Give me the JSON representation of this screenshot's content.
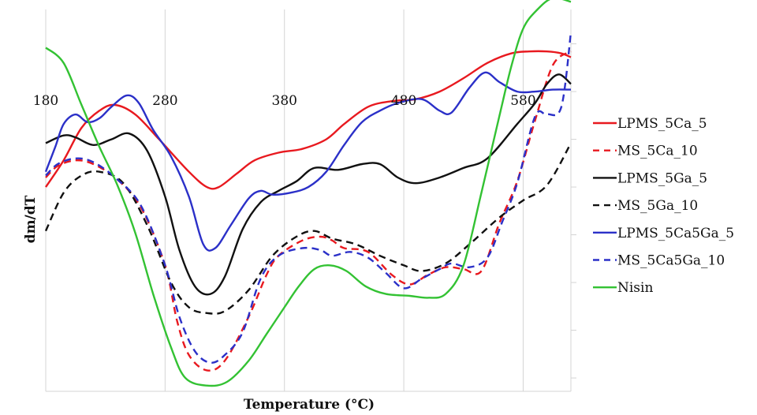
{
  "chart_data": {
    "type": "line",
    "title": "",
    "xlabel": "Temperature (°C)",
    "ylabel": "dm/dT",
    "xlim": [
      180,
      620
    ],
    "ylim": [
      0,
      10
    ],
    "x_ticks": [
      "180",
      "280",
      "380",
      "480",
      "580"
    ],
    "x_tick_values": [
      180,
      280,
      380,
      480,
      580
    ],
    "grid": "vertical",
    "legend_position": "right",
    "series": [
      {
        "name": "LPMS_5Ca_5",
        "color": "#e8191f",
        "dash": "solid",
        "points": [
          [
            180,
            5.35
          ],
          [
            195,
            6.05
          ],
          [
            210,
            6.9
          ],
          [
            225,
            7.35
          ],
          [
            238,
            7.5
          ],
          [
            255,
            7.25
          ],
          [
            275,
            6.6
          ],
          [
            300,
            5.75
          ],
          [
            315,
            5.35
          ],
          [
            325,
            5.35
          ],
          [
            340,
            5.7
          ],
          [
            355,
            6.05
          ],
          [
            375,
            6.25
          ],
          [
            395,
            6.35
          ],
          [
            415,
            6.6
          ],
          [
            430,
            7.0
          ],
          [
            450,
            7.45
          ],
          [
            470,
            7.6
          ],
          [
            490,
            7.65
          ],
          [
            510,
            7.85
          ],
          [
            530,
            8.2
          ],
          [
            550,
            8.6
          ],
          [
            570,
            8.85
          ],
          [
            585,
            8.9
          ],
          [
            600,
            8.9
          ],
          [
            612,
            8.85
          ],
          [
            620,
            8.75
          ]
        ]
      },
      {
        "name": "MS_5Ca_10",
        "color": "#e8191f",
        "dash": "dashed",
        "points": [
          [
            180,
            5.6
          ],
          [
            190,
            5.9
          ],
          [
            205,
            6.05
          ],
          [
            220,
            5.95
          ],
          [
            240,
            5.55
          ],
          [
            260,
            4.8
          ],
          [
            280,
            3.3
          ],
          [
            290,
            1.85
          ],
          [
            300,
            0.95
          ],
          [
            315,
            0.55
          ],
          [
            330,
            0.8
          ],
          [
            350,
            1.95
          ],
          [
            365,
            3.05
          ],
          [
            375,
            3.55
          ],
          [
            395,
            3.95
          ],
          [
            410,
            4.05
          ],
          [
            420,
            3.95
          ],
          [
            430,
            3.75
          ],
          [
            450,
            3.65
          ],
          [
            470,
            3.05
          ],
          [
            485,
            2.8
          ],
          [
            500,
            3.05
          ],
          [
            515,
            3.25
          ],
          [
            530,
            3.2
          ],
          [
            545,
            3.15
          ],
          [
            560,
            4.4
          ],
          [
            575,
            5.5
          ],
          [
            590,
            7.1
          ],
          [
            605,
            8.55
          ],
          [
            620,
            8.9
          ]
        ]
      },
      {
        "name": "LPMS_5Ga_5",
        "color": "#111111",
        "dash": "solid",
        "points": [
          [
            180,
            6.5
          ],
          [
            195,
            6.7
          ],
          [
            205,
            6.65
          ],
          [
            220,
            6.45
          ],
          [
            235,
            6.6
          ],
          [
            250,
            6.75
          ],
          [
            265,
            6.3
          ],
          [
            280,
            5.1
          ],
          [
            292,
            3.7
          ],
          [
            305,
            2.75
          ],
          [
            318,
            2.55
          ],
          [
            330,
            3.0
          ],
          [
            345,
            4.25
          ],
          [
            360,
            4.95
          ],
          [
            375,
            5.25
          ],
          [
            390,
            5.5
          ],
          [
            405,
            5.85
          ],
          [
            425,
            5.8
          ],
          [
            445,
            5.95
          ],
          [
            460,
            5.95
          ],
          [
            475,
            5.6
          ],
          [
            490,
            5.45
          ],
          [
            510,
            5.6
          ],
          [
            530,
            5.85
          ],
          [
            550,
            6.1
          ],
          [
            575,
            7.0
          ],
          [
            590,
            7.55
          ],
          [
            600,
            8.05
          ],
          [
            610,
            8.3
          ],
          [
            620,
            8.05
          ]
        ]
      },
      {
        "name": "MS_5Ga_10",
        "color": "#111111",
        "dash": "dashed",
        "points": [
          [
            180,
            4.2
          ],
          [
            195,
            5.2
          ],
          [
            210,
            5.65
          ],
          [
            225,
            5.75
          ],
          [
            245,
            5.45
          ],
          [
            265,
            4.35
          ],
          [
            285,
            2.85
          ],
          [
            300,
            2.2
          ],
          [
            315,
            2.05
          ],
          [
            330,
            2.1
          ],
          [
            350,
            2.65
          ],
          [
            370,
            3.55
          ],
          [
            390,
            4.05
          ],
          [
            405,
            4.2
          ],
          [
            420,
            4.0
          ],
          [
            440,
            3.85
          ],
          [
            460,
            3.55
          ],
          [
            480,
            3.3
          ],
          [
            495,
            3.15
          ],
          [
            515,
            3.35
          ],
          [
            535,
            3.85
          ],
          [
            560,
            4.55
          ],
          [
            580,
            5.0
          ],
          [
            600,
            5.4
          ],
          [
            620,
            6.5
          ]
        ]
      },
      {
        "name": "LPMS_5Ca5Ga_5",
        "color": "#2b30c8",
        "dash": "solid",
        "points": [
          [
            180,
            5.75
          ],
          [
            188,
            6.4
          ],
          [
            195,
            7.0
          ],
          [
            205,
            7.25
          ],
          [
            215,
            7.05
          ],
          [
            225,
            7.15
          ],
          [
            235,
            7.45
          ],
          [
            248,
            7.75
          ],
          [
            258,
            7.55
          ],
          [
            270,
            6.85
          ],
          [
            285,
            6.15
          ],
          [
            300,
            5.1
          ],
          [
            312,
            3.85
          ],
          [
            322,
            3.75
          ],
          [
            335,
            4.35
          ],
          [
            350,
            5.05
          ],
          [
            360,
            5.25
          ],
          [
            370,
            5.15
          ],
          [
            385,
            5.2
          ],
          [
            400,
            5.35
          ],
          [
            415,
            5.75
          ],
          [
            430,
            6.45
          ],
          [
            445,
            7.05
          ],
          [
            460,
            7.35
          ],
          [
            475,
            7.55
          ],
          [
            495,
            7.65
          ],
          [
            510,
            7.35
          ],
          [
            520,
            7.3
          ],
          [
            535,
            7.95
          ],
          [
            548,
            8.35
          ],
          [
            560,
            8.1
          ],
          [
            575,
            7.85
          ],
          [
            590,
            7.85
          ],
          [
            605,
            7.9
          ],
          [
            620,
            7.9
          ]
        ]
      },
      {
        "name": "MS_5Ca5Ga_10",
        "color": "#2b30c8",
        "dash": "dashed",
        "points": [
          [
            180,
            5.65
          ],
          [
            190,
            5.95
          ],
          [
            205,
            6.1
          ],
          [
            220,
            6.0
          ],
          [
            240,
            5.55
          ],
          [
            260,
            4.85
          ],
          [
            280,
            3.3
          ],
          [
            292,
            1.95
          ],
          [
            305,
            1.05
          ],
          [
            318,
            0.75
          ],
          [
            330,
            0.95
          ],
          [
            345,
            1.55
          ],
          [
            360,
            2.95
          ],
          [
            375,
            3.55
          ],
          [
            395,
            3.75
          ],
          [
            410,
            3.7
          ],
          [
            420,
            3.55
          ],
          [
            435,
            3.65
          ],
          [
            450,
            3.5
          ],
          [
            465,
            3.1
          ],
          [
            480,
            2.7
          ],
          [
            495,
            2.95
          ],
          [
            510,
            3.2
          ],
          [
            520,
            3.35
          ],
          [
            535,
            3.25
          ],
          [
            550,
            3.5
          ],
          [
            562,
            4.4
          ],
          [
            575,
            5.45
          ],
          [
            590,
            7.2
          ],
          [
            600,
            7.25
          ],
          [
            612,
            7.45
          ],
          [
            620,
            9.4
          ]
        ]
      },
      {
        "name": "Nisin",
        "color": "#33c233",
        "dash": "solid",
        "points": [
          [
            180,
            9.0
          ],
          [
            195,
            8.6
          ],
          [
            210,
            7.5
          ],
          [
            225,
            6.4
          ],
          [
            240,
            5.4
          ],
          [
            255,
            4.15
          ],
          [
            270,
            2.55
          ],
          [
            285,
            1.15
          ],
          [
            297,
            0.35
          ],
          [
            315,
            0.15
          ],
          [
            332,
            0.25
          ],
          [
            350,
            0.8
          ],
          [
            365,
            1.5
          ],
          [
            380,
            2.2
          ],
          [
            392,
            2.75
          ],
          [
            405,
            3.2
          ],
          [
            418,
            3.3
          ],
          [
            432,
            3.15
          ],
          [
            448,
            2.75
          ],
          [
            465,
            2.55
          ],
          [
            485,
            2.5
          ],
          [
            500,
            2.45
          ],
          [
            515,
            2.55
          ],
          [
            530,
            3.3
          ],
          [
            545,
            5.2
          ],
          [
            560,
            7.2
          ],
          [
            570,
            8.5
          ],
          [
            580,
            9.5
          ],
          [
            592,
            10.0
          ],
          [
            605,
            10.3
          ],
          [
            620,
            10.2
          ]
        ]
      }
    ]
  }
}
